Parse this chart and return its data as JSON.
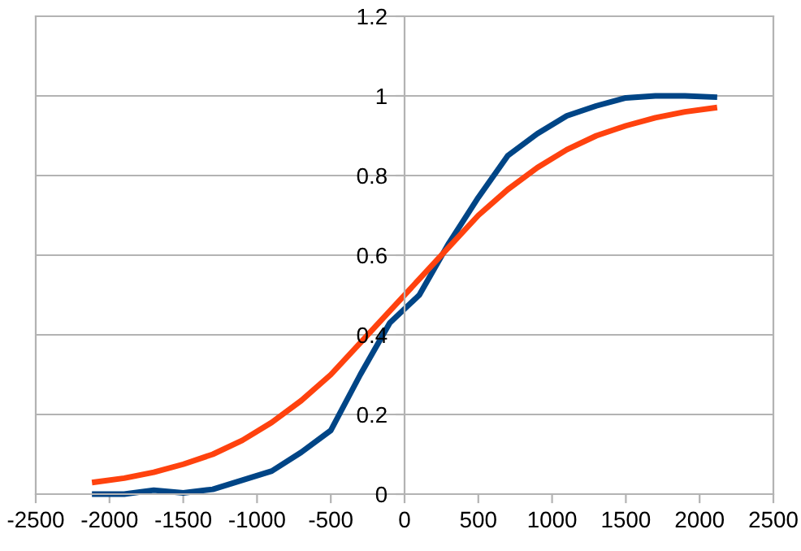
{
  "chart_data": {
    "type": "line",
    "x": [
      -2100,
      -1900,
      -1700,
      -1500,
      -1300,
      -1100,
      -900,
      -700,
      -500,
      -300,
      -100,
      100,
      300,
      500,
      700,
      900,
      1100,
      1300,
      1500,
      1700,
      1900,
      2100
    ],
    "series": [
      {
        "color": "#004586",
        "values": [
          0,
          0,
          0.01,
          0.003,
          0.012,
          0.035,
          0.058,
          0.105,
          0.16,
          0.3,
          0.43,
          0.5,
          0.63,
          0.745,
          0.85,
          0.905,
          0.95,
          0.975,
          0.995,
          1.0,
          1.0,
          0.997
        ]
      },
      {
        "color": "#ff420e",
        "values": [
          0.03,
          0.04,
          0.055,
          0.075,
          0.1,
          0.135,
          0.18,
          0.235,
          0.3,
          0.38,
          0.46,
          0.54,
          0.62,
          0.7,
          0.765,
          0.82,
          0.865,
          0.9,
          0.925,
          0.945,
          0.96,
          0.97
        ]
      }
    ],
    "xlim": [
      -2500,
      2500
    ],
    "xticks": [
      -2500,
      -2000,
      -1500,
      -1000,
      -500,
      0,
      500,
      1000,
      1500,
      2000,
      2500
    ],
    "ylim": [
      0,
      1.2
    ],
    "yticks": [
      0,
      0.2,
      0.4,
      0.6,
      0.8,
      1,
      1.2
    ],
    "grid": "y",
    "marker": "none",
    "line_style": "solid"
  }
}
